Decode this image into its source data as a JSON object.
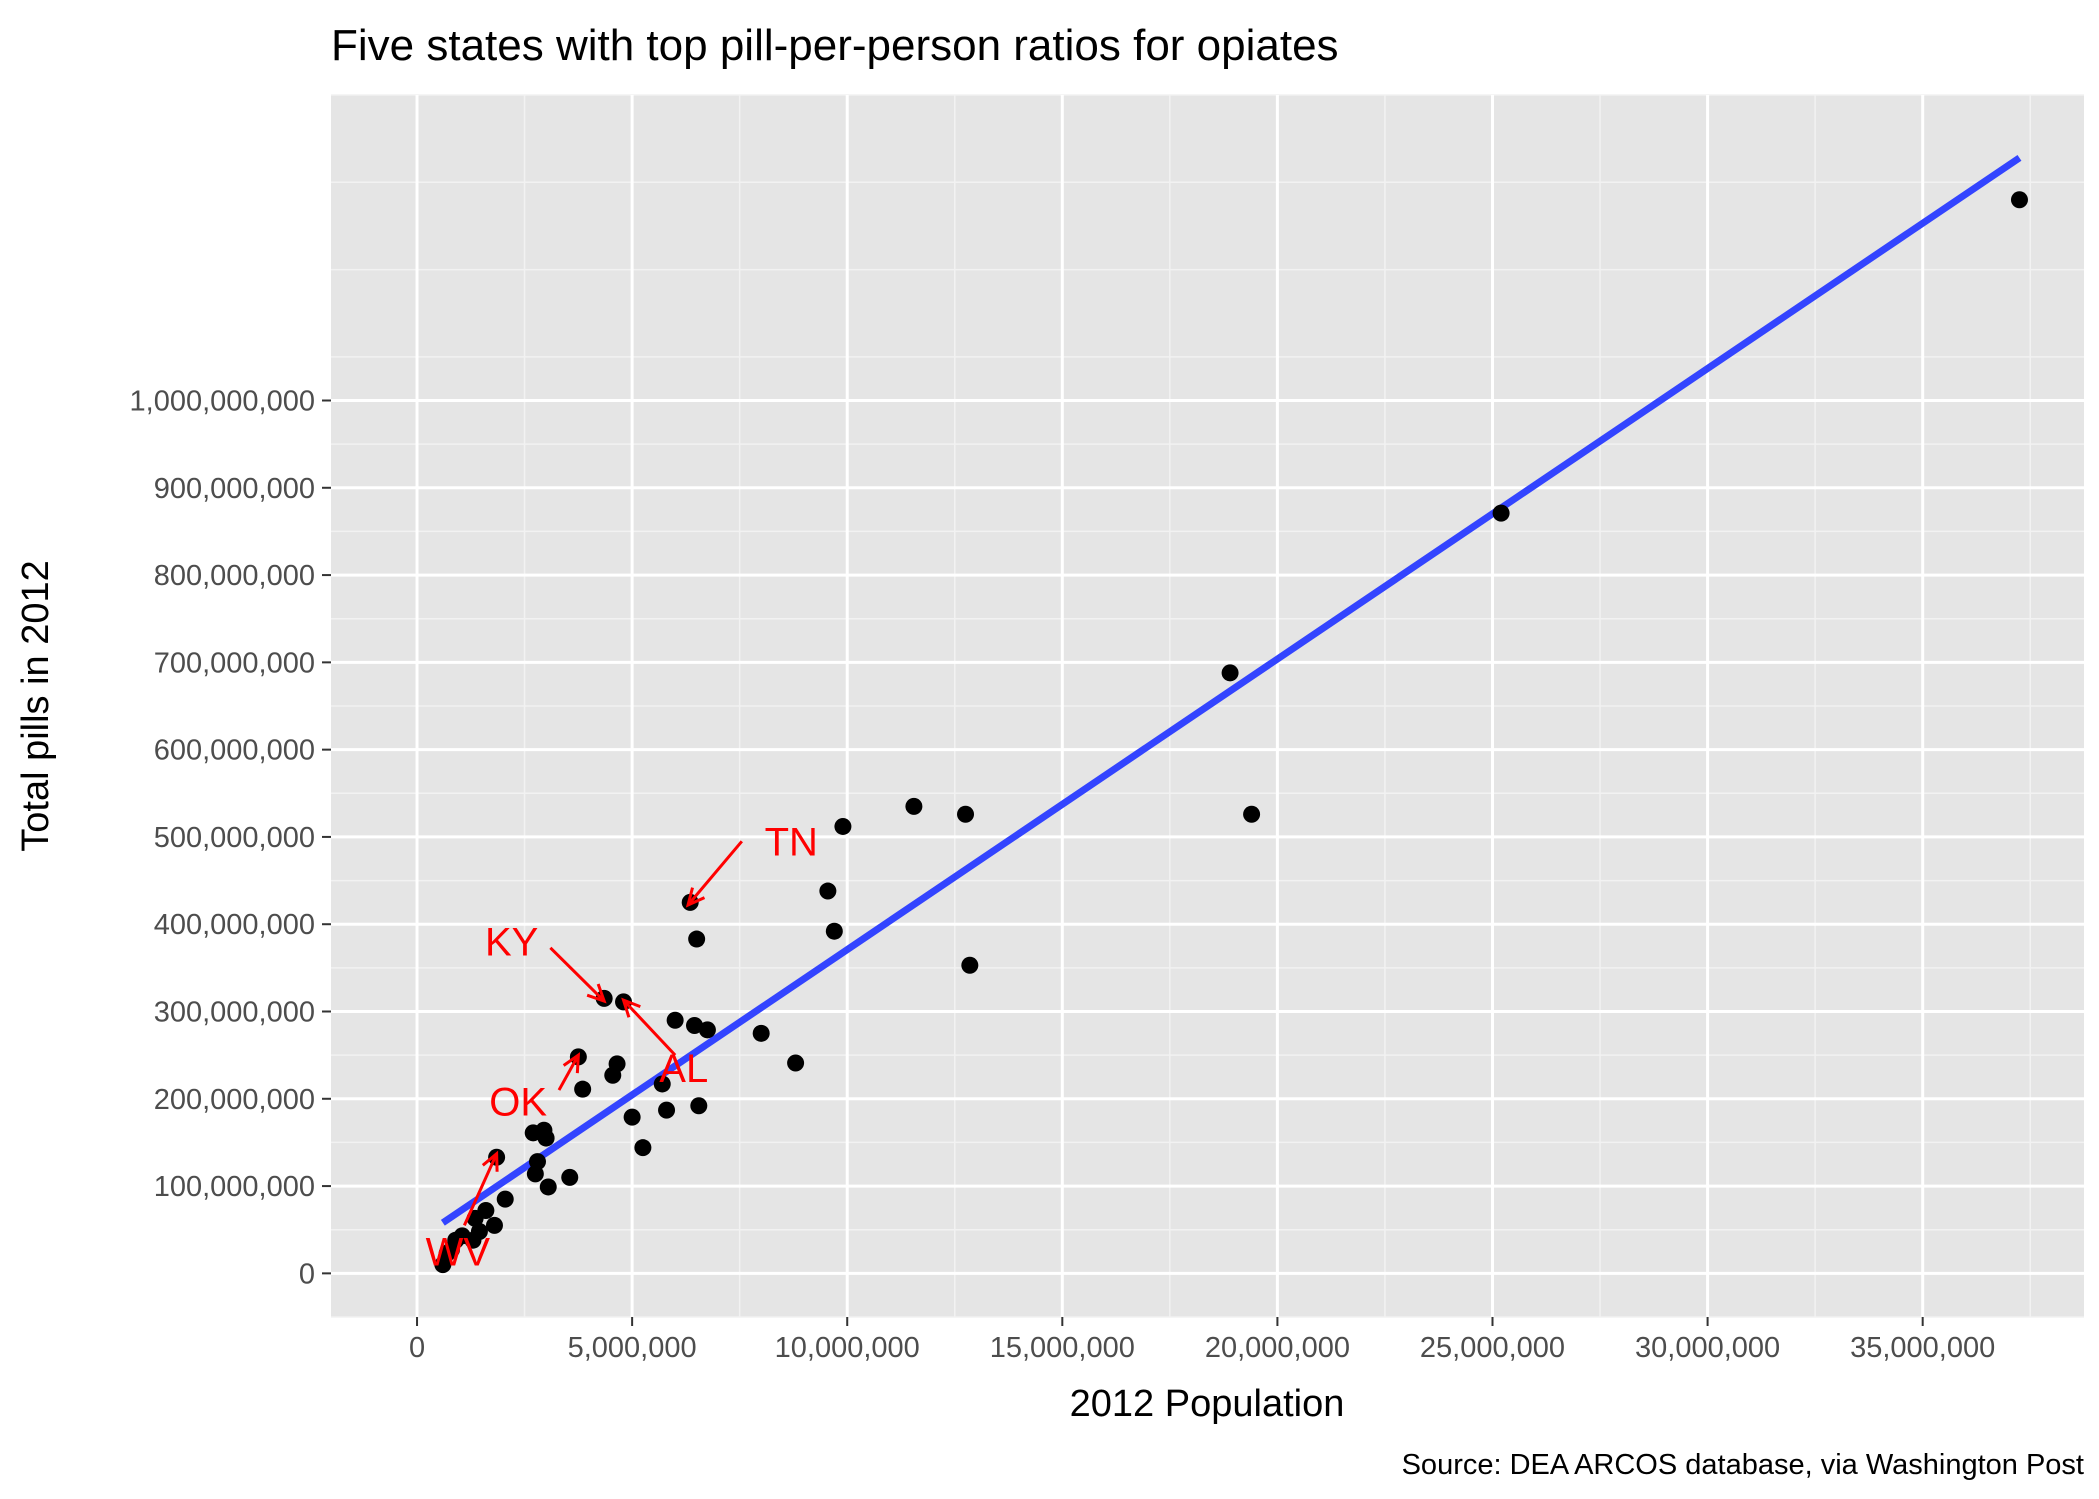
{
  "chart_data": {
    "type": "scatter",
    "title": "Five states with top pill-per-person ratios for opiates",
    "xlabel": "2012 Population",
    "ylabel": "Total pills in 2012",
    "caption": "Source: DEA ARCOS database, via Washington Post",
    "xlim": [
      -2000000,
      38750000
    ],
    "ylim": [
      -50000000,
      1350000000
    ],
    "x_ticks": [
      0,
      5000000,
      10000000,
      15000000,
      20000000,
      25000000,
      30000000,
      35000000
    ],
    "x_tick_labels": [
      "0",
      "5,000,000",
      "10,000,000",
      "15,000,000",
      "20,000,000",
      "25,000,000",
      "30,000,000",
      "35,000,000"
    ],
    "y_ticks": [
      0,
      100000000,
      200000000,
      300000000,
      400000000,
      500000000,
      600000000,
      700000000,
      800000000,
      900000000,
      1000000000
    ],
    "y_tick_labels": [
      "0",
      "100,000,000",
      "200,000,000",
      "300,000,000",
      "400,000,000",
      "500,000,000",
      "600,000,000",
      "700,000,000",
      "800,000,000",
      "900,000,000",
      "1,000,000,000"
    ],
    "grid": true,
    "panel_background": "#e5e5e5",
    "point_color": "#000000",
    "trend_color": "#3344ff",
    "annotation_color": "#ff0000",
    "points": [
      {
        "x": 37250000,
        "y": 1230000000
      },
      {
        "x": 25200000,
        "y": 871000000
      },
      {
        "x": 18900000,
        "y": 688000000
      },
      {
        "x": 19400000,
        "y": 526000000
      },
      {
        "x": 11550000,
        "y": 535000000
      },
      {
        "x": 12750000,
        "y": 526000000
      },
      {
        "x": 12850000,
        "y": 353000000
      },
      {
        "x": 9900000,
        "y": 512000000
      },
      {
        "x": 9550000,
        "y": 438000000
      },
      {
        "x": 9700000,
        "y": 392000000
      },
      {
        "x": 8800000,
        "y": 241000000
      },
      {
        "x": 8000000,
        "y": 275000000
      },
      {
        "x": 6350000,
        "y": 425000000
      },
      {
        "x": 6500000,
        "y": 383000000
      },
      {
        "x": 6000000,
        "y": 290000000
      },
      {
        "x": 6450000,
        "y": 284000000
      },
      {
        "x": 6750000,
        "y": 279000000
      },
      {
        "x": 6550000,
        "y": 192000000
      },
      {
        "x": 5700000,
        "y": 217000000
      },
      {
        "x": 5800000,
        "y": 187000000
      },
      {
        "x": 5250000,
        "y": 144000000
      },
      {
        "x": 5000000,
        "y": 179000000
      },
      {
        "x": 4800000,
        "y": 311000000
      },
      {
        "x": 4350000,
        "y": 315000000
      },
      {
        "x": 4650000,
        "y": 240000000
      },
      {
        "x": 4550000,
        "y": 227000000
      },
      {
        "x": 3750000,
        "y": 248000000
      },
      {
        "x": 3850000,
        "y": 211000000
      },
      {
        "x": 2950000,
        "y": 164000000
      },
      {
        "x": 2700000,
        "y": 161000000
      },
      {
        "x": 2800000,
        "y": 128000000
      },
      {
        "x": 3000000,
        "y": 155000000
      },
      {
        "x": 2750000,
        "y": 114000000
      },
      {
        "x": 3050000,
        "y": 99000000
      },
      {
        "x": 3550000,
        "y": 110000000
      },
      {
        "x": 1850000,
        "y": 133000000
      },
      {
        "x": 2050000,
        "y": 85000000
      },
      {
        "x": 1600000,
        "y": 72000000
      },
      {
        "x": 1800000,
        "y": 55000000
      },
      {
        "x": 1350000,
        "y": 63000000
      },
      {
        "x": 1450000,
        "y": 48000000
      },
      {
        "x": 1300000,
        "y": 38000000
      },
      {
        "x": 1050000,
        "y": 43000000
      },
      {
        "x": 900000,
        "y": 38000000
      },
      {
        "x": 800000,
        "y": 27000000
      },
      {
        "x": 700000,
        "y": 23000000
      },
      {
        "x": 600000,
        "y": 10000000
      }
    ],
    "trend_line": {
      "x": [
        600000,
        37250000
      ],
      "y": [
        58000000,
        1278000000
      ]
    },
    "annotations": [
      {
        "label": "TN",
        "text_x": 8700000,
        "text_y": 495000000,
        "arrow_from": [
          7550000,
          495000000
        ],
        "arrow_to": [
          6300000,
          422000000
        ]
      },
      {
        "label": "KY",
        "text_x": 2200000,
        "text_y": 380000000,
        "arrow_from": [
          3100000,
          373000000
        ],
        "arrow_to": [
          4350000,
          312000000
        ]
      },
      {
        "label": "AL",
        "text_x": 6200000,
        "text_y": 235000000,
        "arrow_from": [
          6000000,
          250000000
        ],
        "arrow_to": [
          4800000,
          313000000
        ]
      },
      {
        "label": "OK",
        "text_x": 2350000,
        "text_y": 197000000,
        "arrow_from": [
          3300000,
          210000000
        ],
        "arrow_to": [
          3750000,
          250000000
        ]
      },
      {
        "label": "WV",
        "text_x": 950000,
        "text_y": 25000000,
        "arrow_from": [
          1100000,
          55000000
        ],
        "arrow_to": [
          1850000,
          137000000
        ]
      }
    ]
  }
}
